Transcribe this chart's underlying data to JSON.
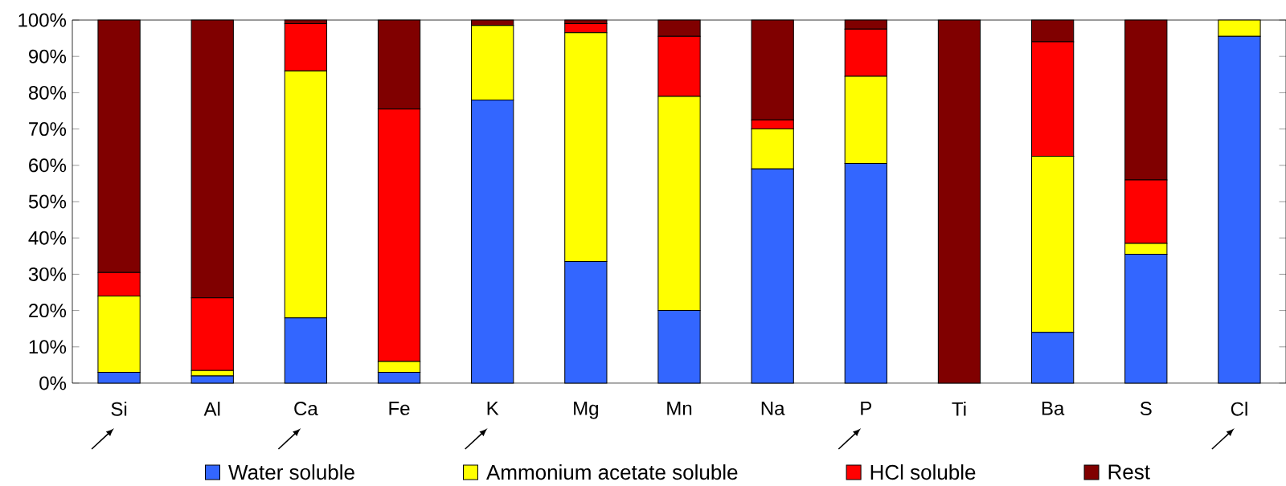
{
  "chart_data": {
    "type": "bar",
    "stacked": true,
    "categories": [
      "Si",
      "Al",
      "Ca",
      "Fe",
      "K",
      "Mg",
      "Mn",
      "Na",
      "P",
      "Ti",
      "Ba",
      "S",
      "Cl"
    ],
    "series": [
      {
        "name": "Water soluble",
        "color": "#3366ff",
        "values": [
          3,
          2,
          18,
          3,
          78,
          33.5,
          20,
          59,
          60.5,
          0,
          14,
          35.5,
          95.5
        ]
      },
      {
        "name": "Ammonium acetate soluble",
        "color": "#ffff00",
        "values": [
          21,
          1.5,
          68,
          3,
          20.5,
          63,
          59,
          11,
          24,
          0,
          48.5,
          3,
          4.5
        ]
      },
      {
        "name": "HCl soluble",
        "color": "#ff0000",
        "values": [
          6.5,
          20,
          13,
          69.5,
          0,
          2.5,
          16.5,
          2.5,
          13,
          0,
          31.5,
          17.5,
          0
        ]
      },
      {
        "name": "Rest",
        "color": "#800000",
        "values": [
          69.5,
          76.5,
          1,
          24.5,
          1.5,
          1,
          4.5,
          27.5,
          2.5,
          100,
          6,
          44,
          0
        ]
      }
    ],
    "ylim": [
      0,
      100
    ],
    "yticks": [
      {
        "value": 0,
        "label": "0%"
      },
      {
        "value": 10,
        "label": "10%"
      },
      {
        "value": 20,
        "label": "20%"
      },
      {
        "value": 30,
        "label": "30%"
      },
      {
        "value": 40,
        "label": "40%"
      },
      {
        "value": 50,
        "label": "50%"
      },
      {
        "value": 60,
        "label": "60%"
      },
      {
        "value": 70,
        "label": "70%"
      },
      {
        "value": 80,
        "label": "80%"
      },
      {
        "value": 90,
        "label": "90%"
      },
      {
        "value": 100,
        "label": "100%"
      }
    ],
    "grid": false,
    "legend": "bottom"
  }
}
